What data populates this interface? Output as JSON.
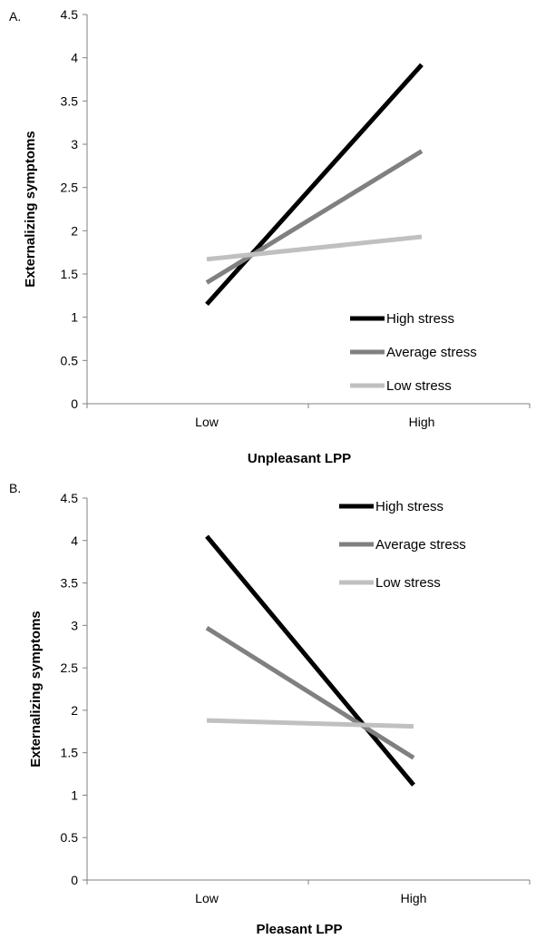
{
  "chart_data": [
    {
      "type": "line",
      "panel_label": "A.",
      "categories": [
        "Low",
        "High"
      ],
      "xlabel": "Unpleasant LPP",
      "ylabel": "Externalizing symptoms",
      "ylim": [
        0,
        4.5
      ],
      "yticks": [
        "0",
        "0.5",
        "1",
        "1.5",
        "2",
        "2.5",
        "3",
        "3.5",
        "4",
        "4.5"
      ],
      "legend_position": "bottom-right",
      "series": [
        {
          "name": "High stress",
          "values": [
            1.15,
            3.92
          ],
          "color": "#000000"
        },
        {
          "name": "Average stress",
          "values": [
            1.4,
            2.92
          ],
          "color": "#808080"
        },
        {
          "name": "Low stress",
          "values": [
            1.67,
            1.93
          ],
          "color": "#c0c0c0"
        }
      ]
    },
    {
      "type": "line",
      "panel_label": "B.",
      "categories": [
        "Low",
        "High"
      ],
      "xlabel": "Pleasant LPP",
      "ylabel": "Externalizing symptoms",
      "ylim": [
        0,
        4.5
      ],
      "yticks": [
        "0",
        "0.5",
        "1",
        "1.5",
        "2",
        "2.5",
        "3",
        "3.5",
        "4",
        "4.5"
      ],
      "legend_position": "top-right",
      "series": [
        {
          "name": "High stress",
          "values": [
            4.05,
            1.12
          ],
          "color": "#000000"
        },
        {
          "name": "Average stress",
          "values": [
            2.97,
            1.44
          ],
          "color": "#808080"
        },
        {
          "name": "Low stress",
          "values": [
            1.88,
            1.81
          ],
          "color": "#c0c0c0"
        }
      ]
    }
  ]
}
